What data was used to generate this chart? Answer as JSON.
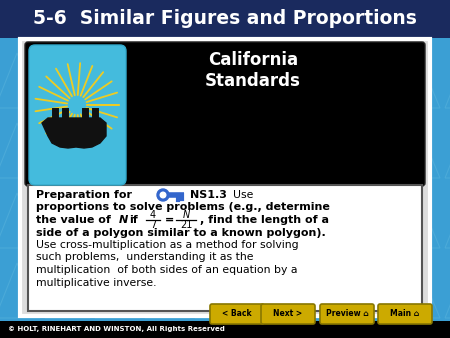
{
  "title": "5-6  Similar Figures and Proportions",
  "title_fontsize": 13.5,
  "title_color": "#ffffff",
  "title_bg": "#1a2a5e",
  "bg_color": "#3b9fd4",
  "bg_triangle_color": "#2d8ab8",
  "white_frame_bg": "#f0f0f0",
  "white_frame_border": "#cccccc",
  "black_header_bg": "#000000",
  "bear_icon_bg": "#44bbdd",
  "bear_sunburst_color": "#eecc22",
  "bear_body_color": "#111111",
  "white_content_bg": "#ffffff",
  "white_content_border": "#888888",
  "card_title1": "California",
  "card_title2": "Standards",
  "card_title_fontsize": 12,
  "card_title_color": "#ffffff",
  "key_color": "#3366cc",
  "prep_text": "Preparation for",
  "standard_text": "NS1.3",
  "use_text": "Use",
  "bold_line1": "proportions to solve problems (e.g., determine",
  "bold_line2_a": "the value of",
  "bold_line2_N": "N",
  "bold_line2_b": "if",
  "frac1_num": "4",
  "frac1_den": "7",
  "frac2_num": "N",
  "frac2_den": "21",
  "bold_line2_c": ", find the length of a",
  "bold_line3": "side of a polygon similar to a known polygon).",
  "normal_line1": "Use cross-multiplication as a method for solving",
  "normal_line2": "such problems,  understanding it as the",
  "normal_line3": "multiplication  of both sides of an equation by a",
  "normal_line4": "multiplicative inverse.",
  "footer_text": "© HOLT, RINEHART AND WINSTON, All Rights Reserved",
  "footer_bg": "#000000",
  "footer_text_color": "#ffffff",
  "btn_color": "#ccaa00",
  "btn_border_color": "#887700",
  "nav_buttons": [
    "Back",
    "Next",
    "Preview",
    "Main"
  ]
}
